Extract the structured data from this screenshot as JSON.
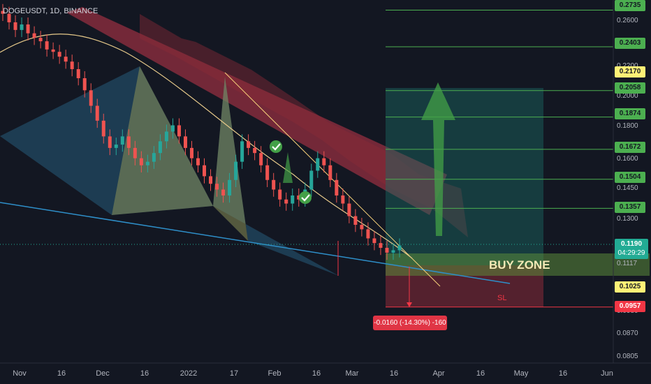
{
  "symbol_label": "DOGEUSDT, 1D, BINANCE",
  "price_axis": {
    "labels": [
      "0.2600",
      "0.2200",
      "0.2000",
      "0.1800",
      "0.1600",
      "0.1450",
      "0.1300",
      "0.1117",
      "0.0980",
      "0.0870",
      "0.0805"
    ]
  },
  "date_axis": {
    "labels": [
      "Nov",
      "16",
      "Dec",
      "16",
      "2022",
      "17",
      "Feb",
      "16",
      "Mar",
      "16",
      "Apr",
      "16",
      "May",
      "16",
      "Jun"
    ]
  },
  "target_tags": [
    {
      "label": "0.2735",
      "color": "#4caf50",
      "text_color": "#131722"
    },
    {
      "label": "0.2403",
      "color": "#4caf50",
      "text_color": "#131722"
    },
    {
      "label": "0.2170",
      "color": "#fff176",
      "text_color": "#131722"
    },
    {
      "label": "0.2058",
      "color": "#4caf50",
      "text_color": "#131722"
    },
    {
      "label": "0.1874",
      "color": "#4caf50",
      "text_color": "#131722"
    },
    {
      "label": "0.1672",
      "color": "#4caf50",
      "text_color": "#131722"
    },
    {
      "label": "0.1504",
      "color": "#4caf50",
      "text_color": "#131722"
    },
    {
      "label": "0.1357",
      "color": "#4caf50",
      "text_color": "#131722"
    },
    {
      "label": "0.1025",
      "color": "#fff176",
      "text_color": "#131722"
    },
    {
      "label": "0.0957",
      "color": "#f23645",
      "text_color": "#ffffff"
    }
  ],
  "current_price": {
    "price": "0.1190",
    "countdown": "04:29:29",
    "color": "#22ab94"
  },
  "annotations": {
    "buy_zone": "BUY ZONE",
    "sl": "SL",
    "measure": "-0.0160 (-14.30%) -160"
  },
  "chart_data": {
    "type": "candlestick",
    "symbol": "DOGEUSDT",
    "timeframe": "1D",
    "exchange": "BINANCE",
    "ylim": [
      0.0785,
      0.2835
    ],
    "y_scale": "log",
    "x_range": [
      "2021-10-29",
      "2022-06-04"
    ],
    "approx_closes": [
      0.27,
      0.262,
      0.255,
      0.26,
      0.252,
      0.248,
      0.245,
      0.238,
      0.236,
      0.232,
      0.228,
      0.222,
      0.215,
      0.206,
      0.195,
      0.185,
      0.175,
      0.168,
      0.17,
      0.175,
      0.168,
      0.162,
      0.158,
      0.16,
      0.165,
      0.172,
      0.178,
      0.182,
      0.175,
      0.168,
      0.162,
      0.158,
      0.152,
      0.148,
      0.145,
      0.142,
      0.15,
      0.16,
      0.172,
      0.168,
      0.165,
      0.158,
      0.15,
      0.145,
      0.14,
      0.138,
      0.142,
      0.14,
      0.145,
      0.155,
      0.162,
      0.158,
      0.15,
      0.142,
      0.138,
      0.132,
      0.128,
      0.126,
      0.122,
      0.12,
      0.118,
      0.116,
      0.117,
      0.119
    ],
    "horizontal_levels": [
      0.2735,
      0.2403,
      0.2058,
      0.1874,
      0.1672,
      0.1504,
      0.1357,
      0.0957
    ],
    "buy_zone": [
      0.1025,
      0.1117
    ],
    "stop_loss": 0.0957,
    "current_price": 0.119,
    "measure_change": {
      "abs": -0.016,
      "pct": -14.3,
      "ticks": -160
    }
  }
}
